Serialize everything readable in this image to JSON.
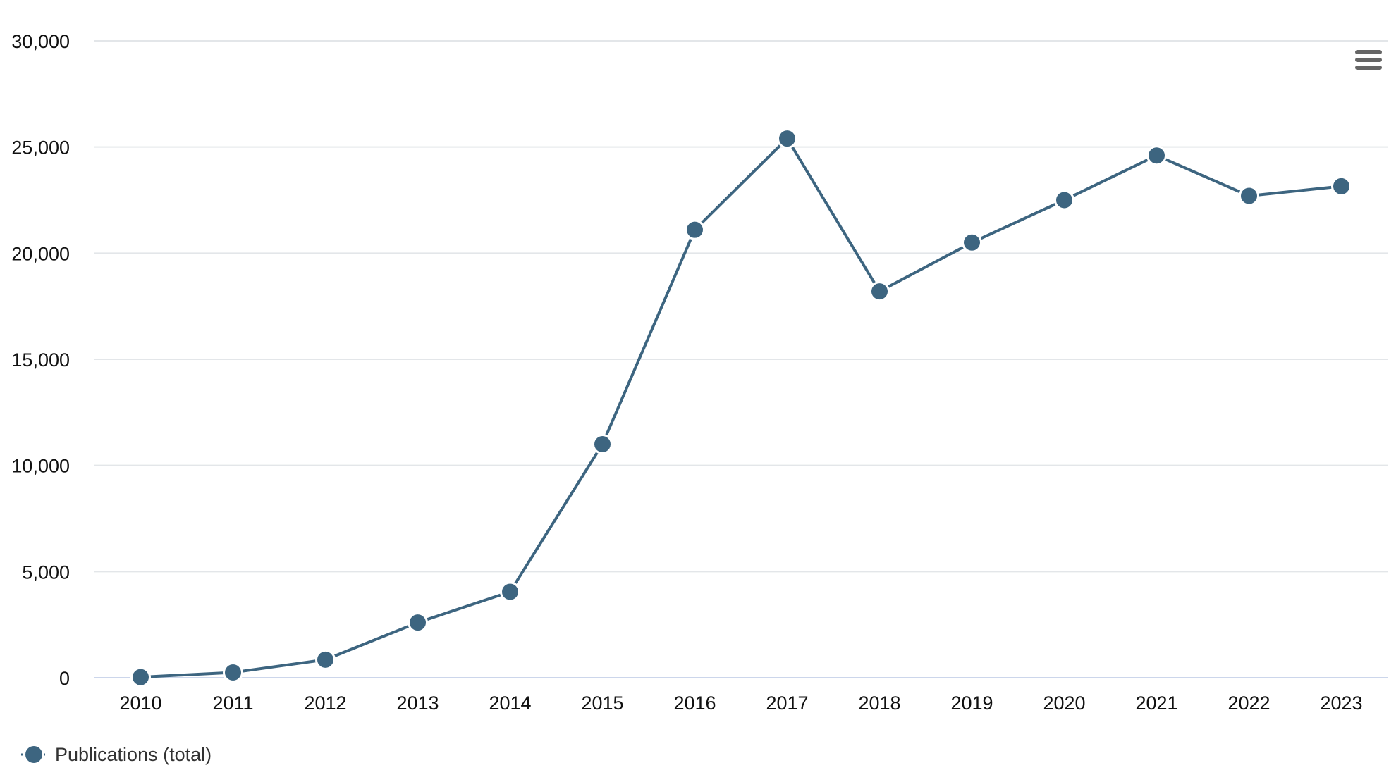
{
  "chart_data": {
    "type": "line",
    "title": "",
    "xlabel": "",
    "ylabel": "",
    "x": [
      "2010",
      "2011",
      "2012",
      "2013",
      "2014",
      "2015",
      "2016",
      "2017",
      "2018",
      "2019",
      "2020",
      "2021",
      "2022",
      "2023"
    ],
    "series": [
      {
        "name": "Publications (total)",
        "color": "#3d6580",
        "values": [
          30,
          250,
          850,
          2600,
          4050,
          11000,
          21100,
          25400,
          18200,
          20500,
          22500,
          24600,
          22700,
          23150
        ]
      }
    ],
    "ylim": [
      0,
      30000
    ],
    "y_ticks": [
      0,
      5000,
      10000,
      15000,
      20000,
      25000,
      30000
    ],
    "y_tick_labels": [
      "0",
      "5,000",
      "10,000",
      "15,000",
      "20,000",
      "25,000",
      "30,000"
    ],
    "grid": true,
    "legend_position": "bottom-left",
    "menu_icon": "hamburger-menu-icon"
  }
}
